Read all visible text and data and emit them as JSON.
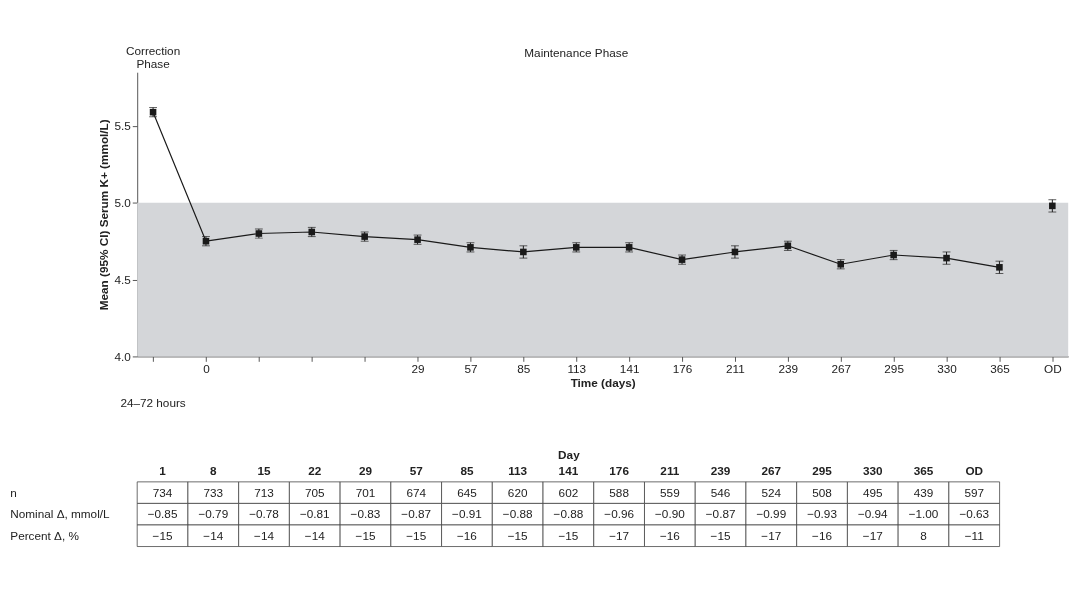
{
  "chart_data": [
    {
      "type": "line",
      "xlabel": "Time (days)",
      "ylabel": "Mean (95% CI) Serum K+ (mmol/L)",
      "categories": [
        null,
        "0",
        null,
        null,
        null,
        "29",
        "57",
        "85",
        "113",
        "141",
        "176",
        "211",
        "239",
        "267",
        "295",
        "330",
        "365",
        "OD"
      ],
      "series": [
        {
          "type": "line",
          "color": "#1a1a1a",
          "values": [
            5.59,
            4.75,
            4.8,
            4.81,
            4.78,
            4.76,
            4.71,
            4.68,
            4.71,
            4.71,
            4.63,
            4.68,
            4.72,
            4.6,
            4.66,
            4.64,
            4.58,
            null
          ],
          "errors": [
            0.03,
            0.03,
            0.03,
            0.03,
            0.03,
            0.03,
            0.03,
            0.04,
            0.03,
            0.03,
            0.03,
            0.04,
            0.03,
            0.03,
            0.03,
            0.04,
            0.04,
            null
          ]
        },
        {
          "type": "scatter",
          "color": "#1a1a1a",
          "values": [
            null,
            null,
            null,
            null,
            null,
            null,
            null,
            null,
            null,
            null,
            null,
            null,
            null,
            null,
            null,
            null,
            null,
            4.98
          ],
          "errors": [
            null,
            null,
            null,
            null,
            null,
            null,
            null,
            null,
            null,
            null,
            null,
            null,
            null,
            null,
            null,
            null,
            null,
            0.04
          ]
        }
      ],
      "ylim": [
        4.0,
        5.85
      ],
      "yticks": [
        {
          "value": 4.0,
          "label": "4.0"
        },
        {
          "value": 4.5,
          "label": "4.5"
        },
        {
          "value": 5.0,
          "label": "5.0"
        },
        {
          "value": 5.5,
          "label": "5.5"
        }
      ],
      "bands": [
        {
          "axis": "y",
          "from": 4.0,
          "to": 5.0,
          "color": "#d4d6d9"
        }
      ],
      "marker": "square",
      "line_style": "solid",
      "grid": false,
      "annotations": [
        "Correction Phase",
        "Maintenance Phase",
        "24–72 hours"
      ]
    },
    {
      "type": "heatmap",
      "title": "Day",
      "categories": [
        "1",
        "8",
        "15",
        "22",
        "29",
        "57",
        "85",
        "113",
        "141",
        "176",
        "211",
        "239",
        "267",
        "295",
        "330",
        "365",
        "OD"
      ],
      "y_categories": [
        "n",
        "Nominal Δ, mmol/L",
        "Percent Δ, %"
      ],
      "cells": [
        [
          null,
          null,
          null,
          null,
          null,
          null,
          null,
          null,
          null,
          null,
          null,
          null,
          null,
          null,
          null,
          null,
          null
        ],
        [
          null,
          null,
          null,
          null,
          null,
          null,
          null,
          null,
          null,
          null,
          null,
          null,
          null,
          null,
          null,
          null,
          null
        ],
        [
          null,
          null,
          null,
          null,
          null,
          null,
          null,
          null,
          null,
          null,
          null,
          null,
          null,
          null,
          null,
          null,
          null
        ]
      ],
      "cell_labels": [
        [
          "734",
          "733",
          "713",
          "705",
          "701",
          "674",
          "645",
          "620",
          "602",
          "588",
          "559",
          "546",
          "524",
          "508",
          "495",
          "439",
          "597"
        ],
        [
          "−0.85",
          "−0.79",
          "−0.78",
          "−0.81",
          "−0.83",
          "−0.87",
          "−0.91",
          "−0.88",
          "−0.88",
          "−0.96",
          "−0.90",
          "−0.87",
          "−0.99",
          "−0.93",
          "−0.94",
          "−1.00",
          "−0.63"
        ],
        [
          "−15",
          "−14",
          "−14",
          "−14",
          "−15",
          "−15",
          "−16",
          "−15",
          "−15",
          "−17",
          "−16",
          "−15",
          "−17",
          "−16",
          "−17",
          "8",
          "−11"
        ]
      ]
    }
  ]
}
